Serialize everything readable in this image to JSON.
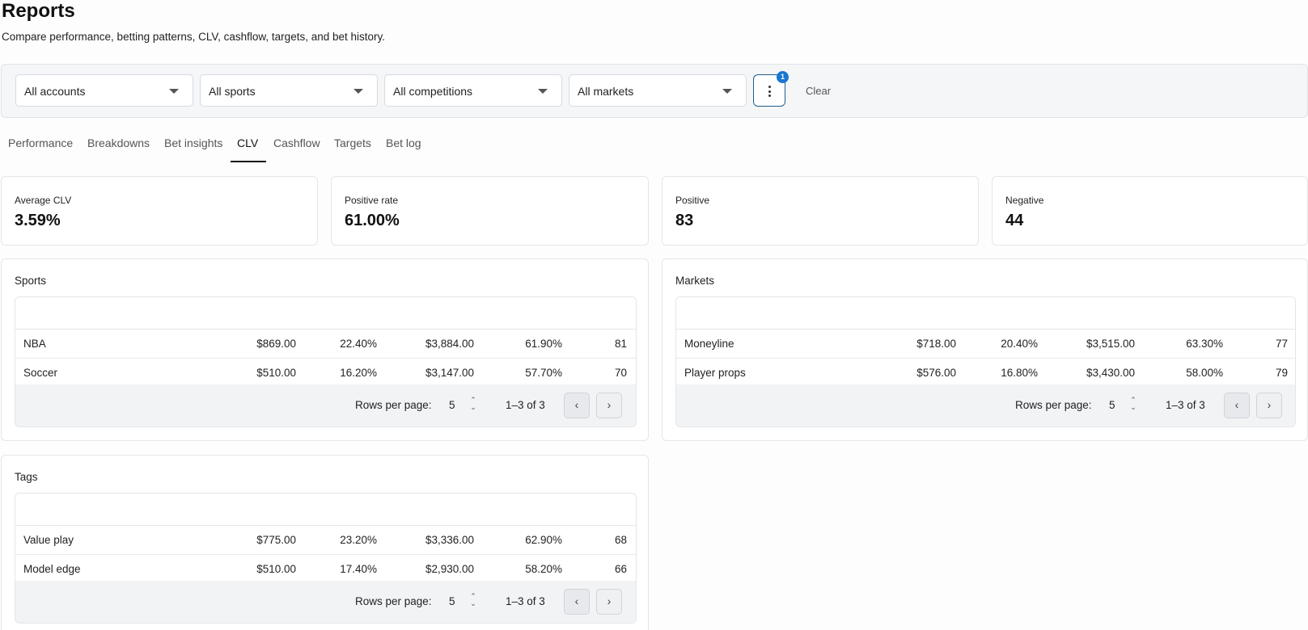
{
  "page": {
    "title": "Reports",
    "subtitle": "Compare performance, betting patterns, CLV, cashflow, targets, and bet history."
  },
  "filters": {
    "accounts": "All accounts",
    "sports": "All sports",
    "competitions": "All competitions",
    "markets": "All markets",
    "more_badge": "1",
    "clear_label": "Clear"
  },
  "tabs": [
    "Performance",
    "Breakdowns",
    "Bet insights",
    "CLV",
    "Cashflow",
    "Targets",
    "Bet log"
  ],
  "active_tab": "CLV",
  "stats": [
    {
      "label": "Average CLV",
      "value": "3.59%"
    },
    {
      "label": "Positive rate",
      "value": "61.00%"
    },
    {
      "label": "Positive",
      "value": "83"
    },
    {
      "label": "Negative",
      "value": "44"
    }
  ],
  "sections": {
    "sports": {
      "title": "Sports",
      "rows": [
        [
          "NBA",
          "$869.00",
          "22.40%",
          "$3,884.00",
          "61.90%",
          "81"
        ],
        [
          "Soccer",
          "$510.00",
          "16.20%",
          "$3,147.00",
          "57.70%",
          "70"
        ]
      ],
      "rows_per_page_label": "Rows per page:",
      "rows_per_page": "5",
      "range": "1–3 of 3"
    },
    "markets": {
      "title": "Markets",
      "rows": [
        [
          "Moneyline",
          "$718.00",
          "20.40%",
          "$3,515.00",
          "63.30%",
          "77"
        ],
        [
          "Player props",
          "$576.00",
          "16.80%",
          "$3,430.00",
          "58.00%",
          "79"
        ]
      ],
      "rows_per_page_label": "Rows per page:",
      "rows_per_page": "5",
      "range": "1–3 of 3"
    },
    "tags": {
      "title": "Tags",
      "rows": [
        [
          "Value play",
          "$775.00",
          "23.20%",
          "$3,336.00",
          "62.90%",
          "68"
        ],
        [
          "Model edge",
          "$510.00",
          "17.40%",
          "$2,930.00",
          "58.20%",
          "66"
        ]
      ],
      "rows_per_page_label": "Rows per page:",
      "rows_per_page": "5",
      "range": "1–3 of 3"
    }
  },
  "icons": {
    "dropdown": "caret-down-icon",
    "more": "more-vertical-icon",
    "spinner": "updown-icon",
    "prev": "chevron-left-icon",
    "next": "chevron-right-icon"
  },
  "colors": {
    "accent": "#1976d2",
    "more_border": "#1f5d8a",
    "filter_bg": "#f5f6f8",
    "footer_bg": "#f1f3f5"
  }
}
